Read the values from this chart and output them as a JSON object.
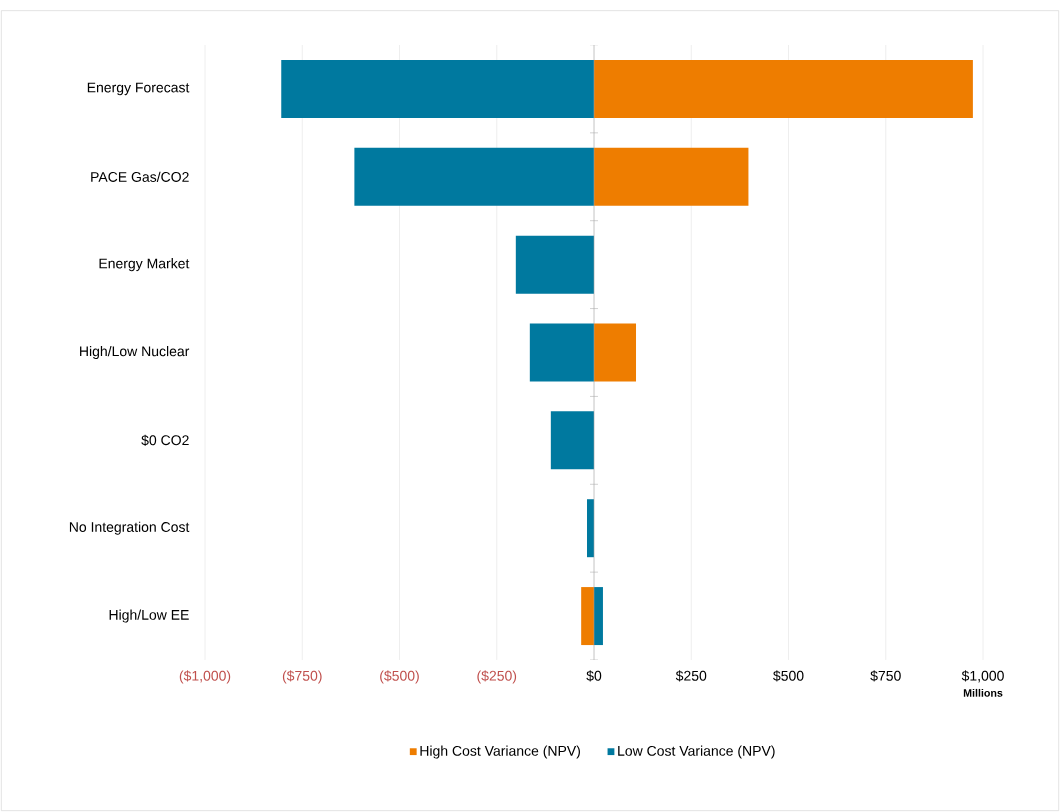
{
  "chart_data": {
    "type": "bar",
    "orientation": "horizontal",
    "xlabel": "Millions",
    "categories": [
      "Energy Forecast",
      "PACE Gas/CO2",
      "Energy Market",
      "High/Low Nuclear",
      "$0 CO2",
      "No Integration Cost",
      "High/Low EE"
    ],
    "series": [
      {
        "name": "High Cost Variance (NPV)",
        "color": "#ee7d00",
        "values": [
          974,
          397,
          null,
          108,
          null,
          null,
          -33
        ]
      },
      {
        "name": "Low Cost Variance (NPV)",
        "color": "#00799f",
        "values": [
          -804,
          -616,
          -201,
          -165,
          -111,
          -18,
          23
        ]
      }
    ],
    "xlim": [
      -1000,
      1000
    ],
    "xticks": [
      {
        "value": -1000,
        "label": "($1,000)"
      },
      {
        "value": -750,
        "label": "($750)"
      },
      {
        "value": -500,
        "label": "($500)"
      },
      {
        "value": -250,
        "label": "($250)"
      },
      {
        "value": 0,
        "label": "$0"
      },
      {
        "value": 250,
        "label": "$250"
      },
      {
        "value": 500,
        "label": "$500"
      },
      {
        "value": 750,
        "label": "$750"
      },
      {
        "value": 1000,
        "label": "$1,000"
      }
    ],
    "grid": "x",
    "legend": "bottom",
    "stacked": true
  }
}
